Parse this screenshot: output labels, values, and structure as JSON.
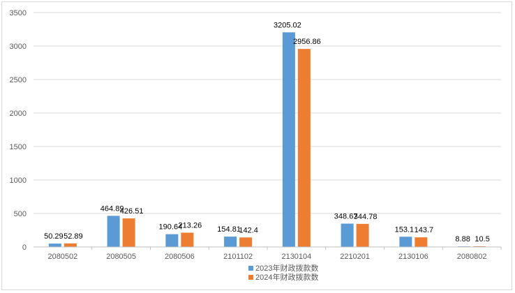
{
  "chart_data": {
    "type": "bar",
    "categories": [
      "2080502",
      "2080505",
      "2080506",
      "2101102",
      "2130104",
      "2210201",
      "2130106",
      "2080802"
    ],
    "series": [
      {
        "name": "2023年财政拨款数",
        "color": "#5b9bd5",
        "values": [
          50.29,
          464.89,
          190.64,
          154.81,
          3205.02,
          348.67,
          153.1,
          8.88
        ],
        "labels": [
          "50.29",
          "464.89",
          "190.64",
          "154.81",
          "3205.02",
          "348.67",
          "153.1",
          "8.88"
        ]
      },
      {
        "name": "2024年财政拨款数",
        "color": "#ed7d31",
        "values": [
          52.89,
          426.51,
          213.26,
          142.4,
          2956.86,
          344.78,
          143.7,
          10.5
        ],
        "labels": [
          "52.89",
          "426.51",
          "213.26",
          "142.4",
          "2956.86",
          "344.78",
          "143.7",
          "10.5"
        ]
      }
    ],
    "ylim": [
      0,
      3500
    ],
    "yticks": [
      0,
      500,
      1000,
      1500,
      2000,
      2500,
      3000,
      3500
    ],
    "grid": true,
    "legend": "bottom"
  }
}
